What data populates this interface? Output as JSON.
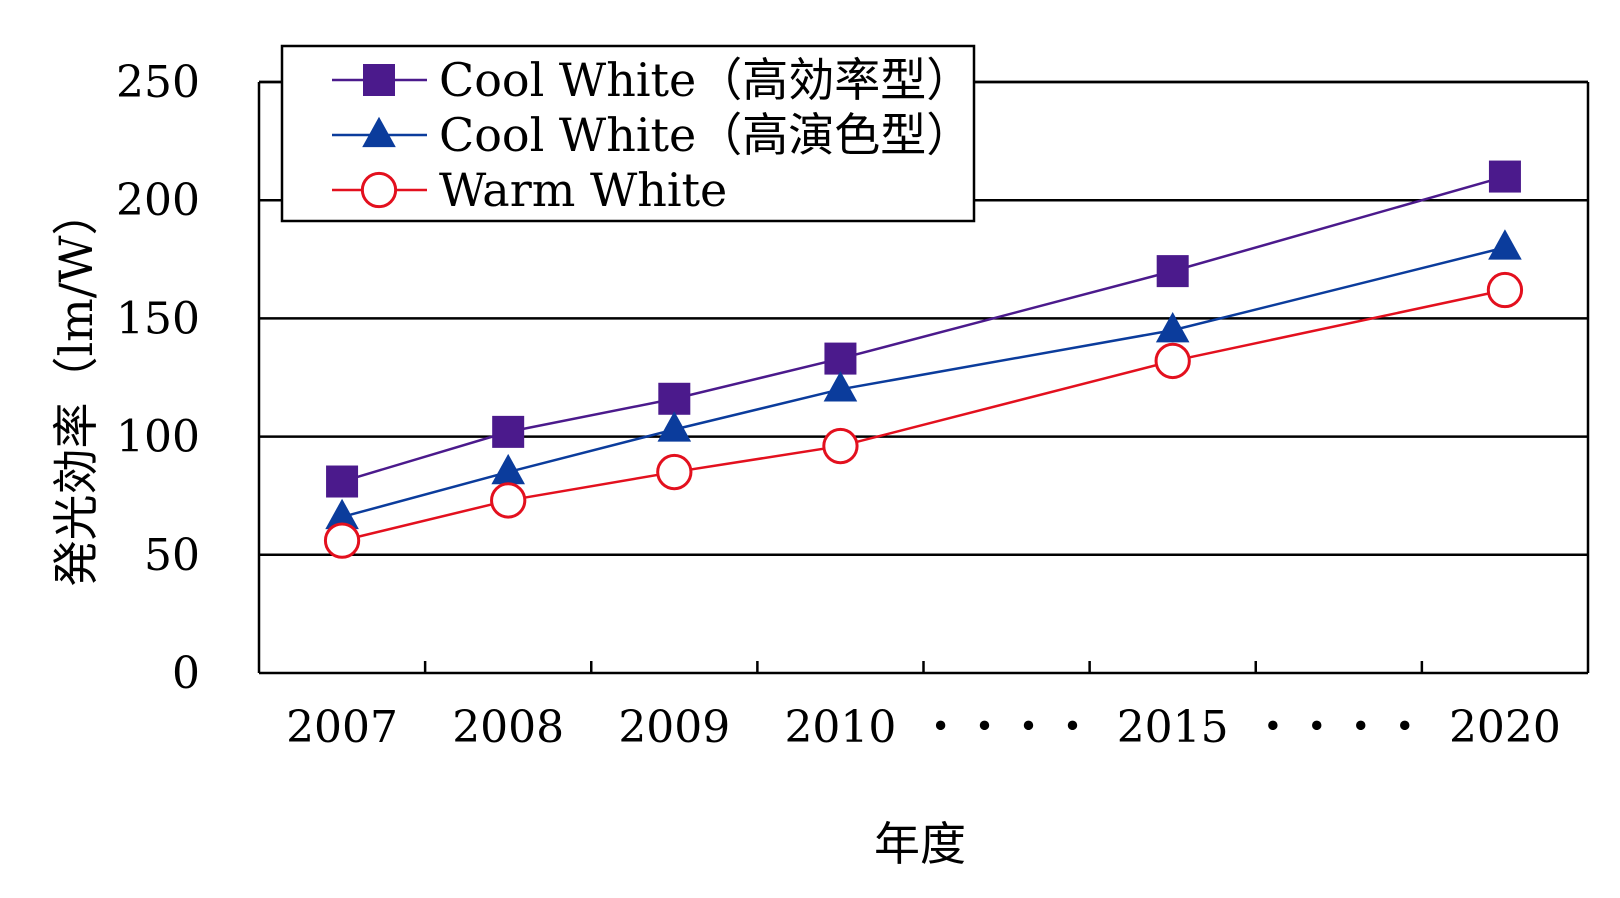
{
  "chart_data": {
    "type": "line",
    "title": "",
    "xlabel": "年度",
    "ylabel": "発光効率（lm/W）",
    "categories": [
      "2007",
      "2008",
      "2009",
      "2010",
      "・・・・",
      "2015",
      "・・・・",
      "2020"
    ],
    "ylim": [
      0,
      250
    ],
    "yticks": [
      "0",
      "50",
      "100",
      "150",
      "200",
      "250"
    ],
    "grid": true,
    "legend": "top-left",
    "series": [
      {
        "name": "Cool White（高効率型）",
        "marker": "square",
        "color": "#4B1A8C",
        "values": [
          81,
          102,
          116,
          133,
          null,
          170,
          null,
          210
        ]
      },
      {
        "name": "Cool White（高演色型）",
        "marker": "triangle",
        "color": "#0B3C9C",
        "values": [
          66,
          85,
          103,
          120,
          null,
          145,
          null,
          180
        ]
      },
      {
        "name": "Warm White",
        "marker": "circle",
        "color": "#E3101E",
        "values": [
          56,
          73,
          85,
          96,
          null,
          132,
          null,
          162
        ]
      }
    ]
  }
}
